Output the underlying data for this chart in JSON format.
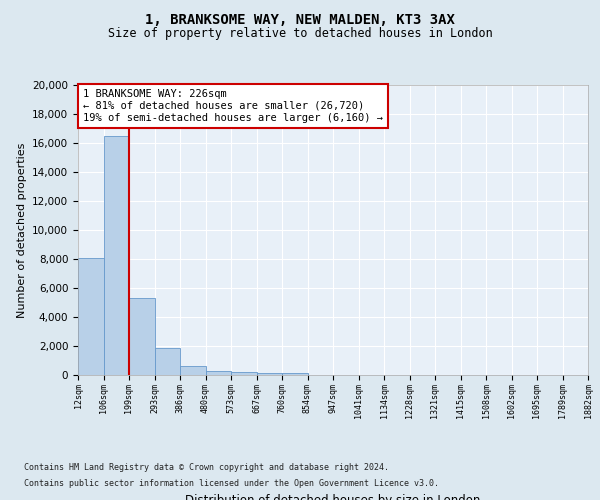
{
  "title": "1, BRANKSOME WAY, NEW MALDEN, KT3 3AX",
  "subtitle": "Size of property relative to detached houses in London",
  "xlabel": "Distribution of detached houses by size in London",
  "ylabel": "Number of detached properties",
  "bar_values": [
    8050,
    16500,
    5300,
    1850,
    650,
    310,
    200,
    170,
    130,
    0,
    0,
    0,
    0,
    0,
    0,
    0,
    0,
    0,
    0,
    0
  ],
  "bar_labels": [
    "12sqm",
    "106sqm",
    "199sqm",
    "293sqm",
    "386sqm",
    "480sqm",
    "573sqm",
    "667sqm",
    "760sqm",
    "854sqm",
    "947sqm",
    "1041sqm",
    "1134sqm",
    "1228sqm",
    "1321sqm",
    "1415sqm",
    "1508sqm",
    "1602sqm",
    "1695sqm",
    "1789sqm",
    "1882sqm"
  ],
  "bar_color": "#b8d0e8",
  "bar_edge_color": "#6699cc",
  "vline_x": 2,
  "vline_color": "#cc0000",
  "annotation_text": "1 BRANKSOME WAY: 226sqm\n← 81% of detached houses are smaller (26,720)\n19% of semi-detached houses are larger (6,160) →",
  "annotation_box_color": "#ffffff",
  "annotation_box_edge": "#cc0000",
  "ylim": [
    0,
    20000
  ],
  "yticks": [
    0,
    2000,
    4000,
    6000,
    8000,
    10000,
    12000,
    14000,
    16000,
    18000,
    20000
  ],
  "bg_color": "#dce8f0",
  "axes_bg_color": "#e8f0f8",
  "footer_line1": "Contains HM Land Registry data © Crown copyright and database right 2024.",
  "footer_line2": "Contains public sector information licensed under the Open Government Licence v3.0."
}
